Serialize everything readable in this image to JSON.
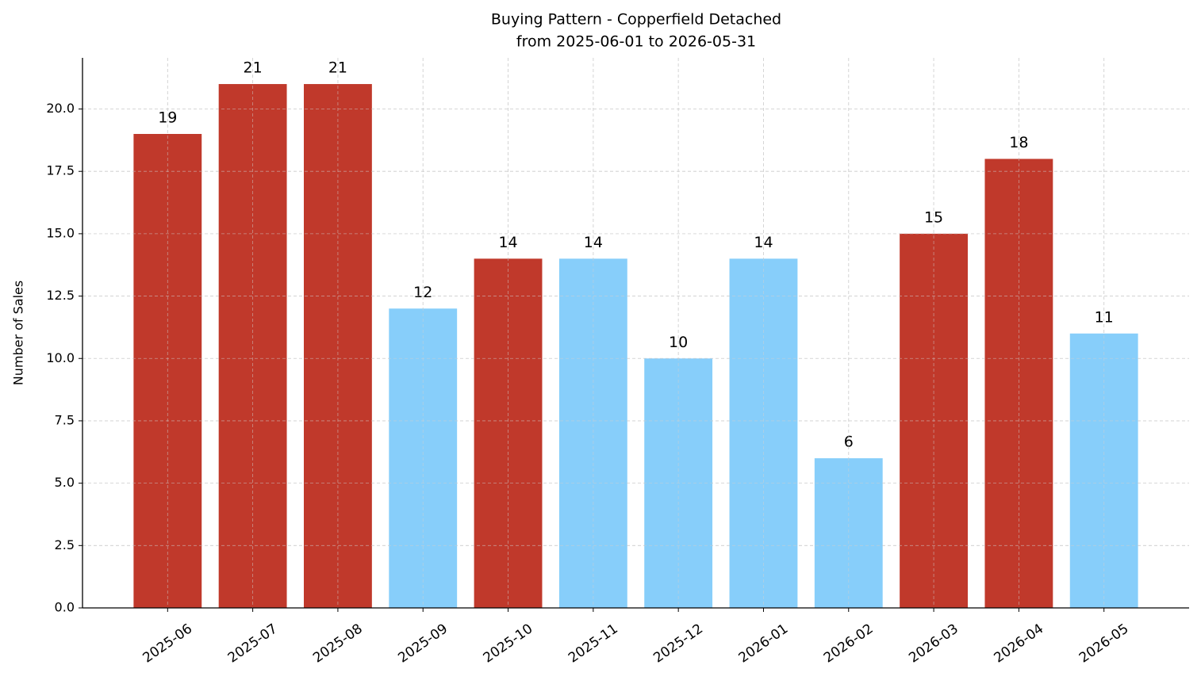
{
  "chart_data": {
    "type": "bar",
    "title": "Buying Pattern - Copperfield Detached",
    "subtitle": "from 2025-06-01 to 2026-05-31",
    "y_label": "Number of Sales",
    "categories": [
      "2025-06",
      "2025-07",
      "2025-08",
      "2025-09",
      "2025-10",
      "2025-11",
      "2025-12",
      "2026-01",
      "2026-02",
      "2026-03",
      "2026-04",
      "2026-05"
    ],
    "values": [
      19,
      21,
      21,
      12,
      14,
      14,
      10,
      14,
      6,
      15,
      18,
      11
    ],
    "colors": [
      "#c0392b",
      "#c0392b",
      "#c0392b",
      "#87cefa",
      "#c0392b",
      "#87cefa",
      "#87cefa",
      "#87cefa",
      "#87cefa",
      "#c0392b",
      "#c0392b",
      "#87cefa"
    ],
    "ylim": [
      0,
      22.05
    ],
    "yticks": [
      {
        "value": 0,
        "label": "0.0"
      },
      2.5,
      {
        "value": 5,
        "label": "5.0"
      },
      7.5,
      {
        "value": 10,
        "label": "10.0"
      },
      12.5,
      {
        "value": 15,
        "label": "15.0"
      },
      17.5,
      {
        "value": 20,
        "label": "20.0"
      }
    ],
    "grid": true
  }
}
